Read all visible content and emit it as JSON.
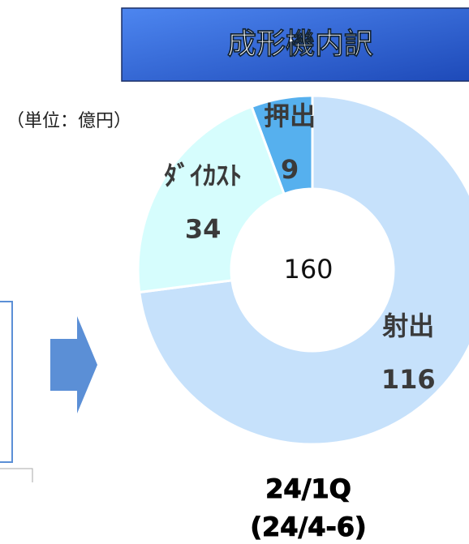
{
  "chart_data": {
    "type": "donut",
    "title": "成形機内訳",
    "unit_label": "（単位：億円）",
    "categories": [
      "射出",
      "ﾀﾞｲｶｽﾄ",
      "押出"
    ],
    "values": [
      116,
      34,
      9
    ],
    "colors": [
      "#c6e1fb",
      "#d6fdfd",
      "#56b0ee"
    ],
    "center_label": "160",
    "period_labels": [
      "24/1Q",
      "(24/4-6)"
    ]
  }
}
